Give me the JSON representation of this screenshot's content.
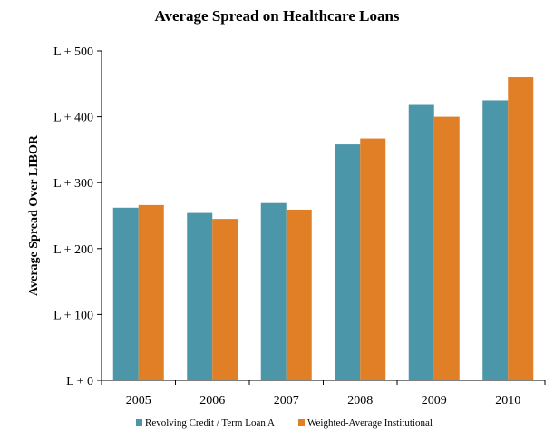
{
  "chart_data": {
    "type": "bar",
    "title": "Average Spread on Healthcare Loans",
    "xlabel": "",
    "ylabel": "Average Spread Over LIBOR",
    "categories": [
      "2005",
      "2006",
      "2007",
      "2008",
      "2009",
      "2010"
    ],
    "y_ticks": [
      0,
      100,
      200,
      300,
      400,
      500
    ],
    "y_tick_labels": [
      "L + 0",
      "L + 100",
      "L + 200",
      "L + 300",
      "L + 400",
      "L + 500"
    ],
    "ylim": [
      0,
      500
    ],
    "grid": false,
    "legend_position": "bottom",
    "series": [
      {
        "name": "Revolving Credit / Term Loan A",
        "color": "#4b96a8",
        "values": [
          262,
          254,
          269,
          358,
          418,
          425
        ]
      },
      {
        "name": "Weighted-Average Institutional",
        "color": "#e07f26",
        "values": [
          266,
          245,
          259,
          367,
          400,
          460
        ]
      }
    ]
  }
}
